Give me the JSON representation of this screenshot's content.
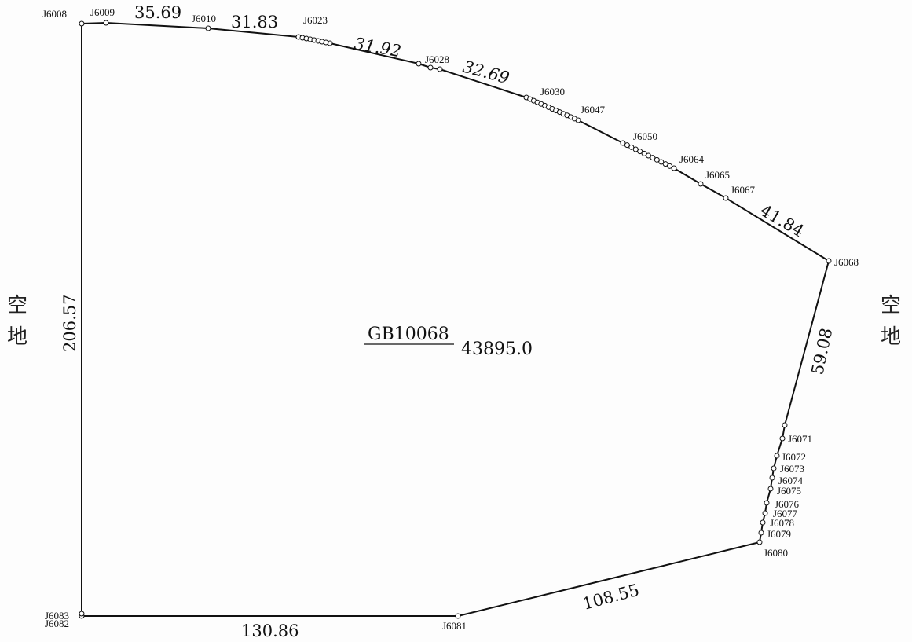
{
  "parcel": {
    "id": "GB10068",
    "area": "43895.0"
  },
  "sides": {
    "left": [
      "空",
      "地"
    ],
    "right": [
      "空",
      "地"
    ]
  },
  "points": [
    {
      "name": "J6008"
    },
    {
      "name": "J6009"
    },
    {
      "name": "J6010"
    },
    {
      "name": "J6023"
    },
    {
      "name": "J6028"
    },
    {
      "name": "J6030"
    },
    {
      "name": "J6047"
    },
    {
      "name": "J6050"
    },
    {
      "name": "J6064"
    },
    {
      "name": "J6065"
    },
    {
      "name": "J6067"
    },
    {
      "name": "J6068"
    },
    {
      "name": "J6071"
    },
    {
      "name": "J6072"
    },
    {
      "name": "J6073"
    },
    {
      "name": "J6074"
    },
    {
      "name": "J6075"
    },
    {
      "name": "J6076"
    },
    {
      "name": "J6077"
    },
    {
      "name": "J6078"
    },
    {
      "name": "J6079"
    },
    {
      "name": "J6080"
    },
    {
      "name": "J6081"
    },
    {
      "name": "J6082"
    },
    {
      "name": "J6083"
    }
  ],
  "edges": [
    {
      "length": "35.69"
    },
    {
      "length": "31.83"
    },
    {
      "length": "31.92"
    },
    {
      "length": "32.69"
    },
    {
      "length": "41.84"
    },
    {
      "length": "59.08"
    },
    {
      "length": "108.55"
    },
    {
      "length": "130.86"
    },
    {
      "length": "206.57"
    }
  ],
  "colors": {
    "line": "#111111",
    "text": "#111111",
    "vertex_fill": "#ffffff"
  }
}
